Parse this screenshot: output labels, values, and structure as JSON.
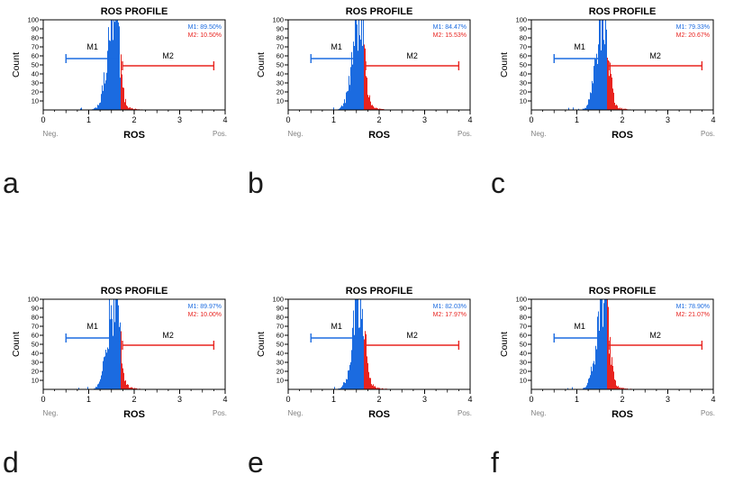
{
  "figure": {
    "background": "#ffffff",
    "colors": {
      "m1_blue": "#1b6be0",
      "m2_red": "#e8231f",
      "neg_pos_gray": "#808080",
      "axis_black": "#000000"
    }
  },
  "chart_data": [
    {
      "panel": "a",
      "type": "area",
      "subtype": "flow-cytometry-histogram",
      "title": "ROS PROFILE",
      "xlabel": "ROS",
      "ylabel": "Count",
      "xlim": [
        0,
        4
      ],
      "ylim": [
        0,
        100
      ],
      "x_ticks": [
        0,
        1,
        2,
        3,
        4
      ],
      "y_ticks": [
        10,
        20,
        30,
        40,
        50,
        60,
        70,
        80,
        90,
        100
      ],
      "x_axis_end_labels": {
        "left": "Neg.",
        "right": "Pos."
      },
      "legend_position": "top-right",
      "gates": [
        {
          "name": "M1",
          "percent": 89.5,
          "label": "M1: 89.50%",
          "range": [
            0.5,
            1.75
          ],
          "color": "#1b6be0"
        },
        {
          "name": "M2",
          "percent": 10.5,
          "label": "M2: 10.50%",
          "range": [
            1.75,
            3.75
          ],
          "color": "#e8231f"
        }
      ],
      "distribution": {
        "peak_x": 1.6,
        "description": "unimodal right-skewed peak; area right of gate shaded red"
      }
    },
    {
      "panel": "b",
      "type": "area",
      "subtype": "flow-cytometry-histogram",
      "title": "ROS PROFILE",
      "xlabel": "ROS",
      "ylabel": "Count",
      "xlim": [
        0,
        4
      ],
      "ylim": [
        0,
        100
      ],
      "x_ticks": [
        0,
        1,
        2,
        3,
        4
      ],
      "y_ticks": [
        10,
        20,
        30,
        40,
        50,
        60,
        70,
        80,
        90,
        100
      ],
      "x_axis_end_labels": {
        "left": "Neg.",
        "right": "Pos."
      },
      "legend_position": "top-right",
      "gates": [
        {
          "name": "M1",
          "percent": 84.47,
          "label": "M1: 84.47%",
          "range": [
            0.5,
            1.75
          ],
          "color": "#1b6be0"
        },
        {
          "name": "M2",
          "percent": 15.53,
          "label": "M2: 15.53%",
          "range": [
            1.75,
            3.75
          ],
          "color": "#e8231f"
        }
      ],
      "distribution": {
        "peak_x": 1.6,
        "description": "unimodal right-skewed peak; area right of gate shaded red"
      }
    },
    {
      "panel": "c",
      "type": "area",
      "subtype": "flow-cytometry-histogram",
      "title": "ROS PROFILE",
      "xlabel": "ROS",
      "ylabel": "Count",
      "xlim": [
        0,
        4
      ],
      "ylim": [
        0,
        100
      ],
      "x_ticks": [
        0,
        1,
        2,
        3,
        4
      ],
      "y_ticks": [
        10,
        20,
        30,
        40,
        50,
        60,
        70,
        80,
        90,
        100
      ],
      "x_axis_end_labels": {
        "left": "Neg.",
        "right": "Pos."
      },
      "legend_position": "top-right",
      "gates": [
        {
          "name": "M1",
          "percent": 79.33,
          "label": "M1: 79.33%",
          "range": [
            0.5,
            1.75
          ],
          "color": "#1b6be0"
        },
        {
          "name": "M2",
          "percent": 20.67,
          "label": "M2: 20.67%",
          "range": [
            1.75,
            3.75
          ],
          "color": "#e8231f"
        }
      ],
      "distribution": {
        "peak_x": 1.65,
        "description": "unimodal right-skewed peak; larger red fraction"
      }
    },
    {
      "panel": "d",
      "type": "area",
      "subtype": "flow-cytometry-histogram",
      "title": "ROS PROFILE",
      "xlabel": "ROS",
      "ylabel": "Count",
      "xlim": [
        0,
        4
      ],
      "ylim": [
        0,
        100
      ],
      "x_ticks": [
        0,
        1,
        2,
        3,
        4
      ],
      "y_ticks": [
        10,
        20,
        30,
        40,
        50,
        60,
        70,
        80,
        90,
        100
      ],
      "x_axis_end_labels": {
        "left": "Neg.",
        "right": "Pos."
      },
      "legend_position": "top-right",
      "gates": [
        {
          "name": "M1",
          "percent": 89.97,
          "label": "M1: 89.97%",
          "range": [
            0.5,
            1.75
          ],
          "color": "#1b6be0"
        },
        {
          "name": "M2",
          "percent": 10.0,
          "label": "M2: 10.00%",
          "range": [
            1.75,
            3.75
          ],
          "color": "#e8231f"
        }
      ],
      "distribution": {
        "peak_x": 1.6,
        "description": "unimodal right-skewed peak; area right of gate shaded red"
      }
    },
    {
      "panel": "e",
      "type": "area",
      "subtype": "flow-cytometry-histogram",
      "title": "ROS PROFILE",
      "xlabel": "ROS",
      "ylabel": "Count",
      "xlim": [
        0,
        4
      ],
      "ylim": [
        0,
        100
      ],
      "x_ticks": [
        0,
        1,
        2,
        3,
        4
      ],
      "y_ticks": [
        10,
        20,
        30,
        40,
        50,
        60,
        70,
        80,
        90,
        100
      ],
      "x_axis_end_labels": {
        "left": "Neg.",
        "right": "Pos."
      },
      "legend_position": "top-right",
      "gates": [
        {
          "name": "M1",
          "percent": 82.03,
          "label": "M1: 82.03%",
          "range": [
            0.5,
            1.75
          ],
          "color": "#1b6be0"
        },
        {
          "name": "M2",
          "percent": 17.97,
          "label": "M2: 17.97%",
          "range": [
            1.75,
            3.75
          ],
          "color": "#e8231f"
        }
      ],
      "distribution": {
        "peak_x": 1.62,
        "description": "unimodal right-skewed peak; area right of gate shaded red"
      }
    },
    {
      "panel": "f",
      "type": "area",
      "subtype": "flow-cytometry-histogram",
      "title": "ROS PROFILE",
      "xlabel": "ROS",
      "ylabel": "Count",
      "xlim": [
        0,
        4
      ],
      "ylim": [
        0,
        100
      ],
      "x_ticks": [
        0,
        1,
        2,
        3,
        4
      ],
      "y_ticks": [
        10,
        20,
        30,
        40,
        50,
        60,
        70,
        80,
        90,
        100
      ],
      "x_axis_end_labels": {
        "left": "Neg.",
        "right": "Pos."
      },
      "legend_position": "top-right",
      "gates": [
        {
          "name": "M1",
          "percent": 78.9,
          "label": "M1: 78.90%",
          "range": [
            0.5,
            1.75
          ],
          "color": "#1b6be0"
        },
        {
          "name": "M2",
          "percent": 21.07,
          "label": "M2: 21.07%",
          "range": [
            1.75,
            3.75
          ],
          "color": "#e8231f"
        }
      ],
      "distribution": {
        "peak_x": 1.65,
        "description": "unimodal right-skewed peak; larger red fraction"
      }
    }
  ]
}
